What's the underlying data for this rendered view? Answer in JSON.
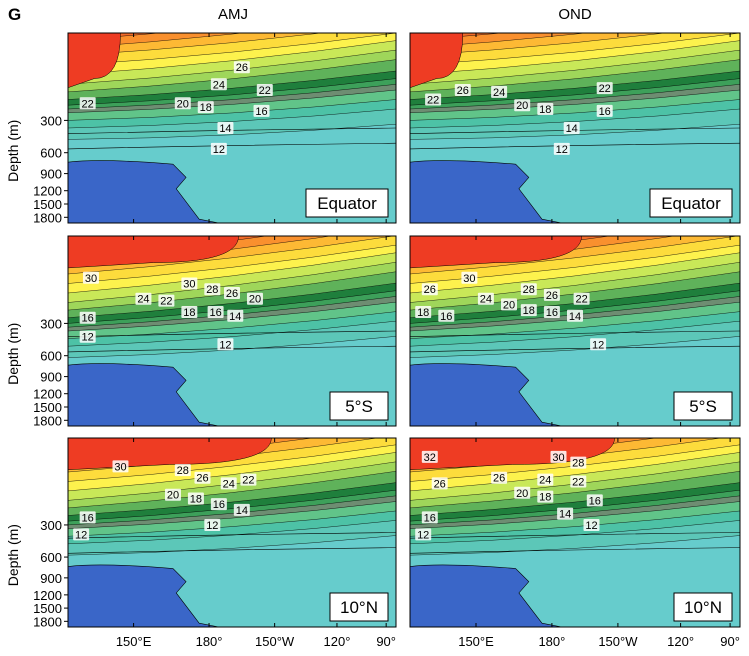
{
  "panel_letter": "G",
  "columns": [
    "AMJ",
    "OND"
  ],
  "rows": [
    "Equator",
    "5°S",
    "10°N"
  ],
  "ylabel": "Depth (m)",
  "yticks": [
    "300",
    "600",
    "900",
    "1200",
    "1500",
    "1800"
  ],
  "xticks": [
    "150°E",
    "180°",
    "150°W",
    "120°",
    "90°"
  ],
  "colors": {
    "deep": "#3a66c8",
    "cyan": "#66cccc",
    "teal": "#4dc2a6",
    "green1": "#61c489",
    "green2": "#3da05a",
    "green3": "#1f7f3c",
    "gray": "#6e8d72",
    "lime": "#c9e858",
    "yellow": "#fdf24d",
    "yellow2": "#fddc3c",
    "orange1": "#fdb934",
    "orange2": "#f9902e",
    "orange3": "#f36b2a",
    "red": "#ee3c23"
  },
  "chart_data": [
    {
      "type": "heatmap",
      "column": "AMJ",
      "region": "Equator",
      "contour_labels": [
        "26",
        "24",
        "22",
        "22",
        "20",
        "18",
        "16",
        "14",
        "12"
      ],
      "yticks": [
        "300",
        "600",
        "900",
        "1200",
        "1500",
        "1800"
      ]
    },
    {
      "type": "heatmap",
      "column": "OND",
      "region": "Equator",
      "contour_labels": [
        "22",
        "26",
        "24",
        "22",
        "20",
        "18",
        "16",
        "14",
        "12"
      ]
    },
    {
      "type": "heatmap",
      "column": "AMJ",
      "region": "5°S",
      "contour_labels": [
        "30",
        "30",
        "28",
        "26",
        "24",
        "22",
        "20",
        "18",
        "16",
        "14",
        "16",
        "12",
        "12"
      ],
      "yticks": [
        "300",
        "600",
        "900",
        "1200",
        "1500",
        "1800"
      ]
    },
    {
      "type": "heatmap",
      "column": "OND",
      "region": "5°S",
      "contour_labels": [
        "30",
        "26",
        "28",
        "26",
        "24",
        "22",
        "20",
        "18",
        "16",
        "14",
        "18",
        "16",
        "12"
      ]
    },
    {
      "type": "heatmap",
      "column": "AMJ",
      "region": "10°N",
      "contour_labels": [
        "30",
        "28",
        "26",
        "24",
        "22",
        "20",
        "18",
        "16",
        "14",
        "16",
        "12",
        "12"
      ],
      "yticks": [
        "300",
        "600",
        "900",
        "1200",
        "1500",
        "1800"
      ],
      "xticks": [
        "150°E",
        "180°",
        "150°W",
        "120°",
        "90°"
      ]
    },
    {
      "type": "heatmap",
      "column": "OND",
      "region": "10°N",
      "contour_labels": [
        "32",
        "30",
        "28",
        "26",
        "26",
        "24",
        "22",
        "20",
        "18",
        "16",
        "14",
        "16",
        "12",
        "12"
      ],
      "xticks": [
        "150°E",
        "180°",
        "150°W",
        "120°",
        "90°"
      ]
    }
  ]
}
